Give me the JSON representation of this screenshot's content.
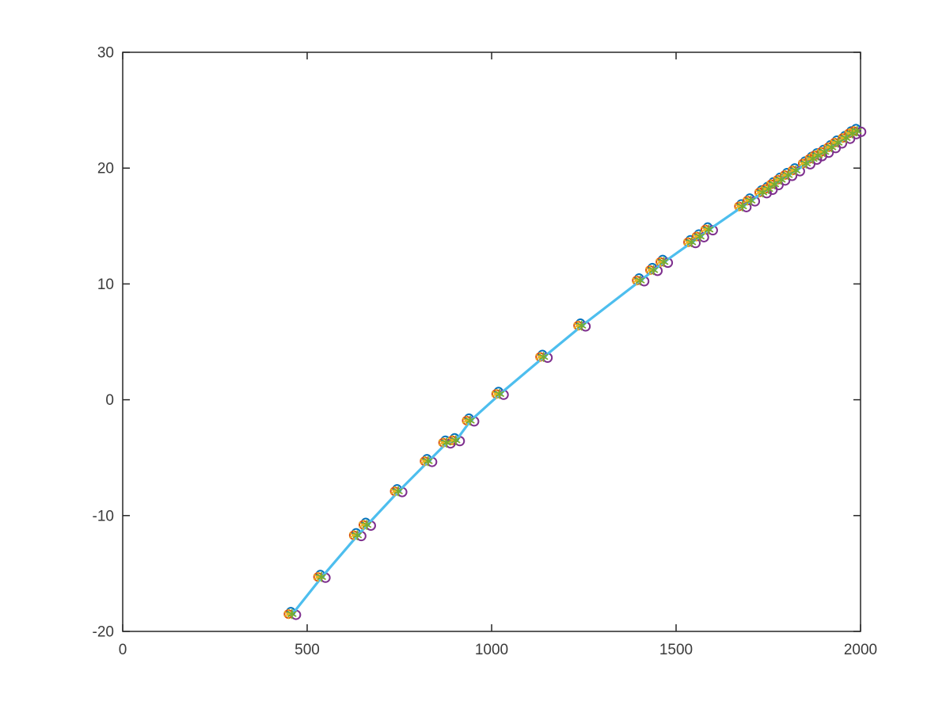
{
  "figure": {
    "background_color": "#ffffff",
    "axes_color": "#262626",
    "tick_label_color": "#3b3b3b",
    "tick_font_size": 19
  },
  "chart_data": {
    "type": "scatter",
    "title": "",
    "xlabel": "",
    "ylabel": "",
    "xlim": [
      0,
      2000
    ],
    "ylim": [
      -20,
      30
    ],
    "xticks": [
      0,
      500,
      1000,
      1500,
      2000
    ],
    "xtick_labels": [
      "0",
      "500",
      "1000",
      "1500",
      "2000"
    ],
    "yticks": [
      -20,
      -10,
      0,
      10,
      20,
      30
    ],
    "ytick_labels": [
      "-20",
      "-10",
      "0",
      "10",
      "20",
      "30"
    ],
    "grid": false,
    "legend": null,
    "box": true,
    "tick_direction": "in",
    "x": [
      460,
      540,
      637,
      663,
      748,
      829,
      879,
      904,
      943,
      1023,
      1142,
      1245,
      1404,
      1440,
      1468,
      1543,
      1566,
      1590,
      1681,
      1704,
      1736,
      1752,
      1768,
      1786,
      1805,
      1826,
      1854,
      1872,
      1886,
      1904,
      1923,
      1940,
      1962,
      1979,
      1992
    ],
    "y": [
      -18.5,
      -15.3,
      -11.7,
      -10.8,
      -7.9,
      -5.3,
      -3.7,
      -3.5,
      -1.8,
      0.5,
      3.7,
      6.4,
      10.3,
      11.2,
      11.9,
      13.6,
      14.1,
      14.7,
      16.7,
      17.2,
      17.9,
      18.2,
      18.6,
      19.0,
      19.4,
      19.8,
      20.4,
      20.8,
      21.1,
      21.4,
      21.8,
      22.2,
      22.6,
      23.0,
      23.2
    ],
    "series": [
      {
        "name": "series-blue-circles",
        "marker": "circle",
        "color": "#0072BD",
        "dx": -2,
        "dy": -3,
        "size": 5,
        "stroke_width": 2
      },
      {
        "name": "series-orange-circles",
        "marker": "circle",
        "color": "#D95319",
        "dx": -5,
        "dy": 0,
        "size": 5,
        "stroke_width": 2
      },
      {
        "name": "series-purple-circles",
        "marker": "circle",
        "color": "#7E2F8E",
        "dx": 4.5,
        "dy": 1,
        "size": 5.5,
        "stroke_width": 2
      },
      {
        "name": "fit-line",
        "marker": "line",
        "color": "#4DBEEE",
        "dx": 0,
        "dy": 0,
        "size": 0,
        "stroke_width": 3.2
      },
      {
        "name": "series-yellow-asterisks",
        "marker": "asterisk",
        "color": "#EDB120",
        "dx": -5,
        "dy": 0,
        "size": 5.5,
        "stroke_width": 1.8
      },
      {
        "name": "series-green-asterisks",
        "marker": "asterisk",
        "color": "#77AC30",
        "dx": -0.5,
        "dy": 0,
        "size": 5.5,
        "stroke_width": 1.8
      }
    ]
  }
}
